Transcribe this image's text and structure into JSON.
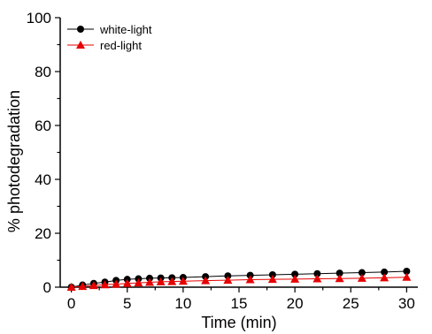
{
  "chart_data": {
    "type": "line",
    "title": "",
    "xlabel": "Time (min)",
    "ylabel": "% photodegradation",
    "xlim": [
      -1,
      31
    ],
    "ylim": [
      0,
      100
    ],
    "xticks": [
      0,
      5,
      10,
      15,
      20,
      25,
      30
    ],
    "yticks": [
      0,
      20,
      40,
      60,
      80,
      100
    ],
    "grid": false,
    "legend_position": "top-left",
    "series": [
      {
        "name": "white-light",
        "marker": "circle",
        "color": "#000000",
        "x": [
          0,
          1,
          2,
          3,
          4,
          5,
          6,
          7,
          8,
          9,
          10,
          12,
          14,
          16,
          18,
          20,
          22,
          24,
          26,
          28,
          30
        ],
        "y": [
          0,
          0.8,
          1.4,
          1.9,
          2.5,
          2.9,
          3.1,
          3.3,
          3.4,
          3.5,
          3.6,
          3.9,
          4.2,
          4.4,
          4.6,
          4.8,
          5.0,
          5.2,
          5.4,
          5.6,
          5.9
        ]
      },
      {
        "name": "red-light",
        "marker": "triangle",
        "color": "#e60000",
        "x": [
          0,
          1,
          2,
          3,
          4,
          5,
          6,
          7,
          8,
          9,
          10,
          12,
          14,
          16,
          18,
          20,
          22,
          24,
          26,
          28,
          30
        ],
        "y": [
          0,
          0.3,
          0.6,
          0.9,
          1.1,
          1.4,
          1.6,
          1.8,
          2.0,
          2.1,
          2.2,
          2.4,
          2.6,
          2.8,
          2.9,
          3.0,
          3.1,
          3.2,
          3.3,
          3.5,
          3.7
        ]
      }
    ]
  }
}
